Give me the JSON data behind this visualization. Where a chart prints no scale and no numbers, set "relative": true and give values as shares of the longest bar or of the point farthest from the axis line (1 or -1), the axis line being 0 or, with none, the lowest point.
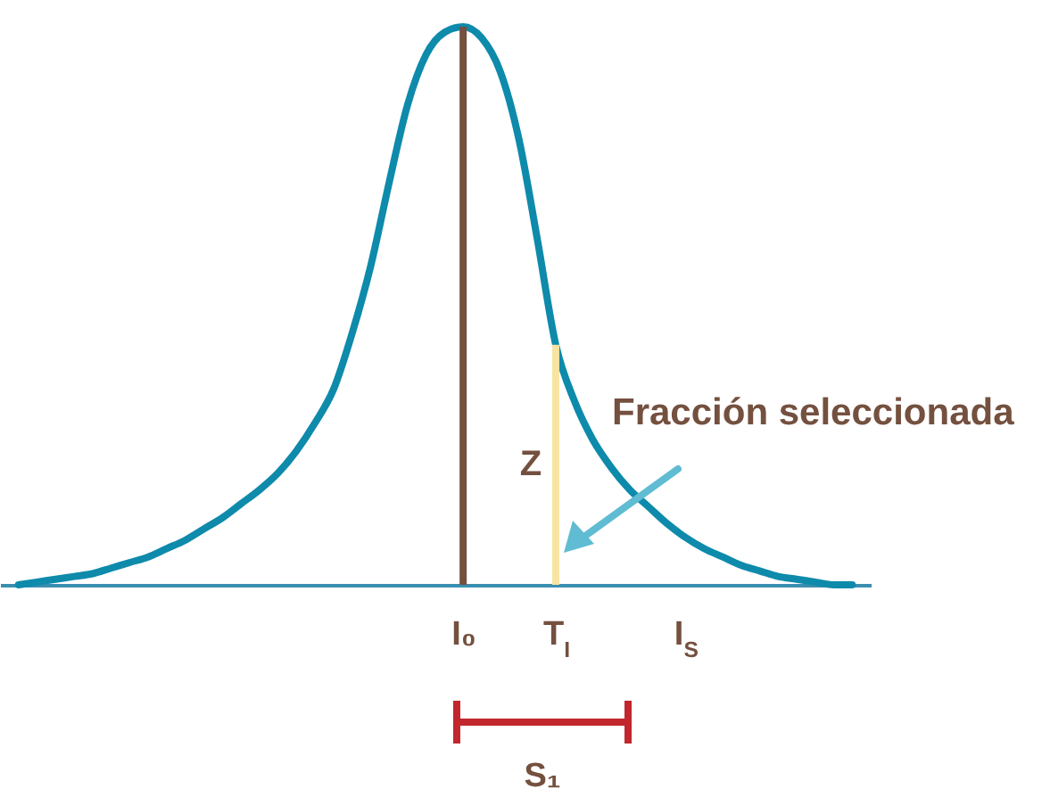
{
  "chart_data": {
    "type": "line",
    "relative": true,
    "categories": [
      null,
      null,
      null,
      null,
      null,
      null,
      null,
      null,
      null,
      null,
      null,
      null,
      null,
      null,
      null,
      null,
      null,
      null,
      null,
      null,
      null,
      null,
      null,
      null,
      "I₀",
      null,
      null,
      null,
      null,
      "T$_{I}$",
      null,
      null,
      null,
      null,
      null,
      null,
      "I$_{S}$",
      null,
      null,
      null,
      null,
      null,
      null,
      null,
      null,
      null
    ],
    "series": [
      {
        "color": "#0e8aab",
        "values": [
          0,
          0.005,
          0.01,
          0.015,
          0.02,
          0.03,
          0.04,
          0.05,
          0.065,
          0.08,
          0.1,
          0.12,
          0.145,
          0.17,
          0.2,
          0.24,
          0.29,
          0.35,
          0.45,
          0.57,
          0.72,
          0.86,
          0.95,
          0.99,
          1,
          0.98,
          0.92,
          0.8,
          0.62,
          0.43,
          0.33,
          0.26,
          0.21,
          0.17,
          0.14,
          0.11,
          0.085,
          0.065,
          0.05,
          0.035,
          0.025,
          0.015,
          0.01,
          0.005,
          0,
          0
        ]
      }
    ],
    "ref_lines": [
      {
        "axis": "x",
        "value": "I₀",
        "color": "#74503f"
      },
      {
        "axis": "x",
        "value": "T$_{I}$",
        "label": "Z",
        "color": "#f8e4a2"
      }
    ],
    "annotations": [
      "Fracción seleccionada",
      "S₁"
    ]
  }
}
